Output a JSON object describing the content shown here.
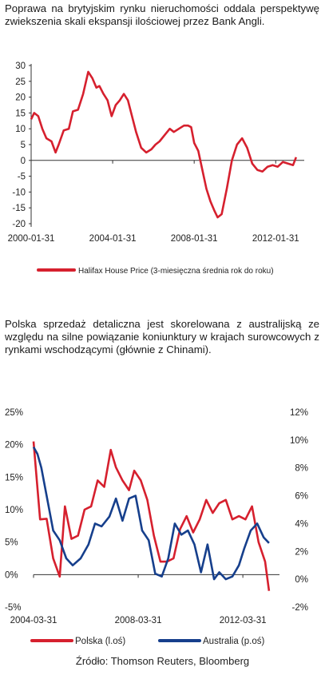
{
  "captions": {
    "chart1": "Poprawa na brytyjskim rynku nieruchomości oddala perspektywę zwiekszenia skali ekspansji ilościowej przez Bank Angli.",
    "chart2": "Polska sprzedaż detaliczna jest skorelowana z australijską ze względu na silne powiązanie koniunktury w krajach surowcowych z rynkami wschodzącymi (głównie z Chinami)."
  },
  "source": "Źródło: Thomson Reuters, Bloomberg",
  "colors": {
    "red": "#d6202e",
    "blue": "#163f8c",
    "axis": "#333333"
  },
  "chart_data": [
    {
      "type": "line",
      "title": "",
      "ylim": [
        -20,
        30
      ],
      "yticks": [
        "30",
        "25",
        "20",
        "15",
        "10",
        "5",
        "0",
        "-5",
        "-10",
        "-15",
        "-20"
      ],
      "ytick_values": [
        30,
        25,
        20,
        15,
        10,
        5,
        0,
        -5,
        -10,
        -15,
        -20
      ],
      "xticks": [
        "2000-01-31",
        "2004-01-31",
        "2008-01-31",
        "2012-01-31"
      ],
      "xlim": [
        2000.0,
        2013.4
      ],
      "xtick_values": [
        2000.0,
        2004.0,
        2008.0,
        2012.0
      ],
      "legend": "bottom",
      "series": [
        {
          "name": "Halifax House Price (3-miesięczna średnia rok do roku)",
          "color": "#d6202e",
          "x": [
            2000.0,
            2000.15,
            2000.35,
            2000.55,
            2000.75,
            2001.0,
            2001.2,
            2001.35,
            2001.6,
            2001.85,
            2002.05,
            2002.3,
            2002.55,
            2002.8,
            2003.0,
            2003.2,
            2003.35,
            2003.55,
            2003.75,
            2003.95,
            2004.15,
            2004.35,
            2004.55,
            2004.75,
            2004.95,
            2005.15,
            2005.4,
            2005.65,
            2005.9,
            2006.1,
            2006.3,
            2006.55,
            2006.8,
            2007.0,
            2007.25,
            2007.5,
            2007.7,
            2007.85,
            2008.0,
            2008.2,
            2008.4,
            2008.6,
            2008.8,
            2009.0,
            2009.15,
            2009.35,
            2009.6,
            2009.85,
            2010.1,
            2010.35,
            2010.6,
            2010.85,
            2011.1,
            2011.35,
            2011.6,
            2011.85,
            2012.1,
            2012.35,
            2012.6,
            2012.85,
            2013.0
          ],
          "y": [
            13,
            15,
            14,
            10,
            7,
            6,
            2.5,
            5,
            9.5,
            10,
            15.5,
            16,
            21,
            28,
            26,
            23,
            23.5,
            21,
            19,
            14,
            17.5,
            19,
            21,
            19,
            14,
            9,
            4,
            2.5,
            3.5,
            5,
            6,
            8,
            10,
            9,
            10,
            11,
            11,
            10.5,
            5.5,
            3,
            -3,
            -9,
            -13,
            -16,
            -18,
            -17,
            -9,
            0,
            5,
            7,
            4,
            -1,
            -3,
            -3.5,
            -2,
            -1.5,
            -2,
            -0.5,
            -1,
            -1.5,
            1
          ]
        }
      ]
    },
    {
      "type": "line",
      "title": "",
      "ylim": [
        -5,
        25
      ],
      "ylim_right": [
        -2,
        12
      ],
      "yticks_left": [
        "25%",
        "20%",
        "15%",
        "10%",
        "5%",
        "0%",
        "-5%"
      ],
      "ytick_values_left": [
        25,
        20,
        15,
        10,
        5,
        0,
        -5
      ],
      "yticks_right": [
        "12%",
        "10%",
        "8%",
        "6%",
        "4%",
        "2%",
        "0%",
        "-2%"
      ],
      "ytick_values_right": [
        12,
        10,
        8,
        6,
        4,
        2,
        0,
        -2
      ],
      "xticks": [
        "2004-03-31",
        "2008-03-31",
        "2012-03-31"
      ],
      "xlim": [
        2004.0,
        2013.4
      ],
      "xtick_values": [
        2004.0,
        2008.0,
        2012.0
      ],
      "legend": "bottom",
      "series": [
        {
          "name": "Polska (l.oś)",
          "color": "#d6202e",
          "axis": "left",
          "x": [
            2004.0,
            2004.25,
            2004.5,
            2004.75,
            2005.0,
            2005.2,
            2005.45,
            2005.7,
            2005.95,
            2006.2,
            2006.45,
            2006.7,
            2006.95,
            2007.15,
            2007.4,
            2007.65,
            2007.85,
            2008.1,
            2008.35,
            2008.6,
            2008.85,
            2009.1,
            2009.35,
            2009.6,
            2009.85,
            2010.1,
            2010.35,
            2010.6,
            2010.85,
            2011.1,
            2011.35,
            2011.6,
            2011.85,
            2012.1,
            2012.35,
            2012.6,
            2012.85,
            2013.0
          ],
          "y": [
            20.5,
            8.5,
            8.6,
            2.5,
            -0.3,
            10.5,
            5.5,
            6,
            10,
            10.5,
            14.5,
            13.5,
            19.2,
            16.5,
            14.5,
            13,
            16,
            14.5,
            11.5,
            6,
            2,
            2,
            2.5,
            7,
            9,
            6.5,
            8.5,
            11.5,
            9.5,
            11,
            11.5,
            8.5,
            9,
            8.5,
            10.5,
            5,
            2,
            -2.5
          ]
        },
        {
          "name": "Australia (p.oś)",
          "color": "#163f8c",
          "axis": "right",
          "x": [
            2004.0,
            2004.15,
            2004.3,
            2004.5,
            2004.75,
            2005.0,
            2005.25,
            2005.5,
            2005.8,
            2006.1,
            2006.35,
            2006.6,
            2006.9,
            2007.15,
            2007.4,
            2007.65,
            2007.9,
            2008.15,
            2008.4,
            2008.65,
            2008.9,
            2009.15,
            2009.4,
            2009.65,
            2009.9,
            2010.15,
            2010.4,
            2010.65,
            2010.9,
            2011.1,
            2011.35,
            2011.6,
            2011.85,
            2012.05,
            2012.3,
            2012.55,
            2012.8,
            2013.0
          ],
          "y": [
            9.5,
            9,
            8,
            6,
            3.5,
            2.8,
            1.5,
            1,
            1.5,
            2.5,
            4,
            3.8,
            4.5,
            5.8,
            4.2,
            5.8,
            6,
            3.5,
            2.8,
            0.4,
            0.2,
            1.5,
            4,
            3.2,
            3.5,
            2.5,
            0.5,
            2.5,
            0,
            0.5,
            0,
            0.2,
            1,
            2.2,
            3.5,
            4,
            3,
            2.6
          ]
        }
      ]
    }
  ]
}
